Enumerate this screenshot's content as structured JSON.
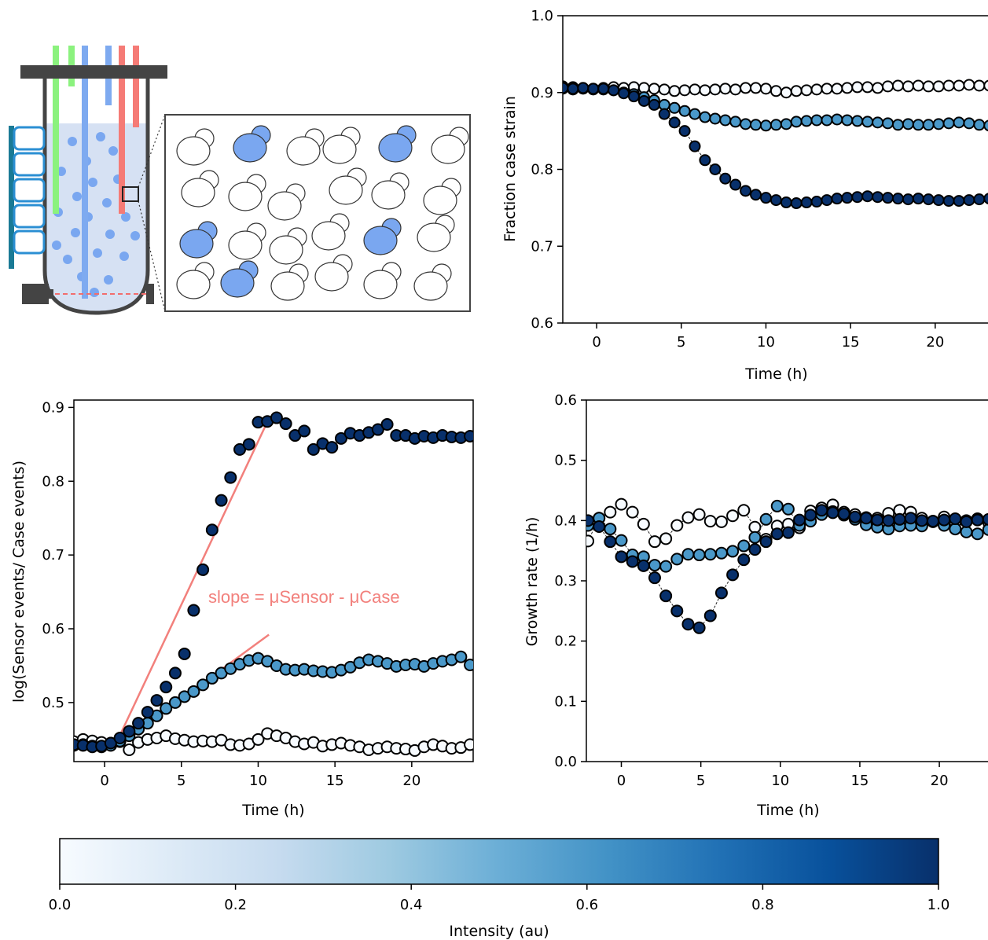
{
  "chart_data": [
    {
      "panel": "fraction",
      "type": "scatter",
      "ylabel": "Fraction case strain",
      "xlabel": "Time (h)",
      "xlim": [
        -2,
        24
      ],
      "ylim": [
        0.6,
        1.0
      ],
      "xticks": [
        "0",
        "5",
        "10",
        "15",
        "20"
      ],
      "yticks": [
        "0.6",
        "0.7",
        "0.8",
        "0.9",
        "1.0"
      ],
      "series": [
        {
          "intensity": 0.0,
          "x": [
            -2.0,
            -1.4,
            -0.8,
            -0.2,
            0.4,
            1.0,
            1.6,
            2.2,
            2.8,
            3.4,
            4.0,
            4.6,
            5.2,
            5.8,
            6.4,
            7.0,
            7.6,
            8.2,
            8.8,
            9.4,
            10.0,
            10.6,
            11.2,
            11.8,
            12.4,
            13.0,
            13.6,
            14.2,
            14.8,
            15.4,
            16.0,
            16.6,
            17.2,
            17.8,
            18.4,
            19.0,
            19.6,
            20.2,
            20.8,
            21.4,
            22.0,
            22.6,
            23.2,
            23.8
          ],
          "y": [
            0.908,
            0.907,
            0.906,
            0.905,
            0.906,
            0.907,
            0.906,
            0.907,
            0.906,
            0.905,
            0.904,
            0.902,
            0.903,
            0.904,
            0.903,
            0.904,
            0.905,
            0.904,
            0.906,
            0.906,
            0.905,
            0.902,
            0.9,
            0.902,
            0.903,
            0.904,
            0.905,
            0.905,
            0.906,
            0.907,
            0.907,
            0.906,
            0.908,
            0.909,
            0.908,
            0.909,
            0.908,
            0.908,
            0.909,
            0.909,
            0.91,
            0.909,
            0.909,
            0.907
          ]
        },
        {
          "intensity": 0.6,
          "x": [
            -2.0,
            -1.4,
            -0.8,
            -0.2,
            0.4,
            1.0,
            1.6,
            2.2,
            2.8,
            3.4,
            4.0,
            4.6,
            5.2,
            5.8,
            6.4,
            7.0,
            7.6,
            8.2,
            8.8,
            9.4,
            10.0,
            10.6,
            11.2,
            11.8,
            12.4,
            13.0,
            13.6,
            14.2,
            14.8,
            15.4,
            16.0,
            16.6,
            17.2,
            17.8,
            18.4,
            19.0,
            19.6,
            20.2,
            20.8,
            21.4,
            22.0,
            22.6,
            23.2,
            23.8
          ],
          "y": [
            0.905,
            0.904,
            0.905,
            0.904,
            0.904,
            0.903,
            0.9,
            0.898,
            0.894,
            0.89,
            0.884,
            0.88,
            0.876,
            0.872,
            0.868,
            0.866,
            0.864,
            0.862,
            0.859,
            0.858,
            0.857,
            0.858,
            0.859,
            0.862,
            0.863,
            0.864,
            0.864,
            0.865,
            0.864,
            0.863,
            0.862,
            0.861,
            0.86,
            0.858,
            0.859,
            0.858,
            0.858,
            0.859,
            0.86,
            0.861,
            0.86,
            0.858,
            0.857,
            0.86
          ]
        },
        {
          "intensity": 1.0,
          "x": [
            -2.0,
            -1.4,
            -0.8,
            -0.2,
            0.4,
            1.0,
            1.6,
            2.2,
            2.8,
            3.4,
            4.0,
            4.6,
            5.2,
            5.8,
            6.4,
            7.0,
            7.6,
            8.2,
            8.8,
            9.4,
            10.0,
            10.6,
            11.2,
            11.8,
            12.4,
            13.0,
            13.6,
            14.2,
            14.8,
            15.4,
            16.0,
            16.6,
            17.2,
            17.8,
            18.4,
            19.0,
            19.6,
            20.2,
            20.8,
            21.4,
            22.0,
            22.6,
            23.2,
            23.8
          ],
          "y": [
            0.906,
            0.905,
            0.906,
            0.905,
            0.905,
            0.903,
            0.899,
            0.895,
            0.889,
            0.884,
            0.872,
            0.861,
            0.85,
            0.83,
            0.812,
            0.8,
            0.788,
            0.78,
            0.772,
            0.767,
            0.763,
            0.76,
            0.757,
            0.756,
            0.757,
            0.758,
            0.76,
            0.762,
            0.763,
            0.764,
            0.765,
            0.764,
            0.763,
            0.762,
            0.761,
            0.762,
            0.761,
            0.76,
            0.759,
            0.759,
            0.76,
            0.761,
            0.762,
            0.761
          ]
        }
      ]
    },
    {
      "panel": "log-ratio",
      "type": "scatter",
      "ylabel": "log(Sensor events/ Case events)",
      "xlabel": "Time (h)",
      "xlim": [
        -2,
        24
      ],
      "ylim": [
        0.42,
        0.91
      ],
      "xticks": [
        "0",
        "5",
        "10",
        "15",
        "20"
      ],
      "yticks": [
        "0.5",
        "0.6",
        "0.7",
        "0.8",
        "0.9"
      ],
      "annotation": "slope = μSensor - μCase",
      "fit_lines": [
        {
          "x": [
            0.6,
            10.7
          ],
          "y": [
            0.438,
            0.885
          ]
        },
        {
          "x": [
            0.6,
            10.7
          ],
          "y": [
            0.438,
            0.592
          ]
        }
      ],
      "series": [
        {
          "intensity": 0.0,
          "x": [
            -2.0,
            -1.4,
            -0.8,
            -0.2,
            0.4,
            1.0,
            1.6,
            2.2,
            2.8,
            3.4,
            4.0,
            4.6,
            5.2,
            5.8,
            6.4,
            7.0,
            7.6,
            8.2,
            8.8,
            9.4,
            10.0,
            10.6,
            11.2,
            11.8,
            12.4,
            13.0,
            13.6,
            14.2,
            14.8,
            15.4,
            16.0,
            16.6,
            17.2,
            17.8,
            18.4,
            19.0,
            19.6,
            20.2,
            20.8,
            21.4,
            22.0,
            22.6,
            23.2,
            23.8
          ],
          "y": [
            0.447,
            0.45,
            0.448,
            0.446,
            0.445,
            0.447,
            0.436,
            0.446,
            0.45,
            0.452,
            0.455,
            0.451,
            0.449,
            0.447,
            0.448,
            0.447,
            0.449,
            0.443,
            0.442,
            0.444,
            0.45,
            0.458,
            0.455,
            0.452,
            0.447,
            0.444,
            0.446,
            0.441,
            0.443,
            0.445,
            0.442,
            0.44,
            0.436,
            0.438,
            0.44,
            0.438,
            0.437,
            0.435,
            0.44,
            0.443,
            0.441,
            0.438,
            0.439,
            0.443
          ]
        },
        {
          "intensity": 0.6,
          "x": [
            -2.0,
            -1.4,
            -0.8,
            -0.2,
            0.4,
            1.0,
            1.6,
            2.2,
            2.8,
            3.4,
            4.0,
            4.6,
            5.2,
            5.8,
            6.4,
            7.0,
            7.6,
            8.2,
            8.8,
            9.4,
            10.0,
            10.6,
            11.2,
            11.8,
            12.4,
            13.0,
            13.6,
            14.2,
            14.8,
            15.4,
            16.0,
            16.6,
            17.2,
            17.8,
            18.4,
            19.0,
            19.6,
            20.2,
            20.8,
            21.4,
            22.0,
            22.6,
            23.2,
            23.8
          ],
          "y": [
            0.442,
            0.443,
            0.441,
            0.44,
            0.442,
            0.448,
            0.455,
            0.464,
            0.472,
            0.482,
            0.492,
            0.5,
            0.508,
            0.515,
            0.524,
            0.533,
            0.54,
            0.546,
            0.552,
            0.557,
            0.56,
            0.556,
            0.55,
            0.545,
            0.544,
            0.545,
            0.543,
            0.542,
            0.541,
            0.544,
            0.548,
            0.554,
            0.558,
            0.556,
            0.553,
            0.549,
            0.551,
            0.552,
            0.549,
            0.553,
            0.556,
            0.558,
            0.562,
            0.551
          ]
        },
        {
          "intensity": 1.0,
          "x": [
            -2.0,
            -1.4,
            -0.8,
            -0.2,
            0.4,
            1.0,
            1.6,
            2.2,
            2.8,
            3.4,
            4.0,
            4.6,
            5.2,
            5.8,
            6.4,
            7.0,
            7.6,
            8.2,
            8.8,
            9.4,
            10.0,
            10.6,
            11.2,
            11.8,
            12.4,
            13.0,
            13.6,
            14.2,
            14.8,
            15.4,
            16.0,
            16.6,
            17.2,
            17.8,
            18.4,
            19.0,
            19.6,
            20.2,
            20.8,
            21.4,
            22.0,
            22.6,
            23.2,
            23.8
          ],
          "y": [
            0.443,
            0.442,
            0.44,
            0.441,
            0.445,
            0.452,
            0.461,
            0.472,
            0.487,
            0.503,
            0.521,
            0.54,
            0.566,
            0.625,
            0.68,
            0.734,
            0.774,
            0.805,
            0.843,
            0.85,
            0.88,
            0.881,
            0.886,
            0.878,
            0.862,
            0.868,
            0.843,
            0.851,
            0.846,
            0.858,
            0.865,
            0.862,
            0.866,
            0.87,
            0.877,
            0.862,
            0.862,
            0.858,
            0.861,
            0.859,
            0.862,
            0.86,
            0.859,
            0.861
          ]
        }
      ]
    },
    {
      "panel": "growth-rate",
      "type": "scatter",
      "ylabel": "Growth rate (1/h)",
      "xlabel": "Time (h)",
      "xlim": [
        -2.2,
        24
      ],
      "ylim": [
        0.0,
        0.6
      ],
      "xticks": [
        "0",
        "5",
        "10",
        "15",
        "20"
      ],
      "yticks": [
        "0.0",
        "0.1",
        "0.2",
        "0.3",
        "0.4",
        "0.5",
        "0.6"
      ],
      "series": [
        {
          "intensity": 0.0,
          "x": [
            -2.1,
            -1.4,
            -0.7,
            0.0,
            0.7,
            1.4,
            2.1,
            2.8,
            3.5,
            4.2,
            4.9,
            5.6,
            6.3,
            7.0,
            7.7,
            8.4,
            9.1,
            9.8,
            10.5,
            11.2,
            11.9,
            12.6,
            13.3,
            14.0,
            14.7,
            15.4,
            16.1,
            16.8,
            17.5,
            18.2,
            18.9,
            19.6,
            20.3,
            21.0,
            21.7,
            22.4,
            23.1,
            23.8
          ],
          "y": [
            0.366,
            0.404,
            0.414,
            0.427,
            0.414,
            0.394,
            0.365,
            0.37,
            0.392,
            0.405,
            0.41,
            0.399,
            0.398,
            0.408,
            0.417,
            0.389,
            0.369,
            0.391,
            0.394,
            0.388,
            0.416,
            0.421,
            0.426,
            0.414,
            0.41,
            0.405,
            0.404,
            0.412,
            0.417,
            0.414,
            0.404,
            0.399,
            0.406,
            0.397,
            0.4,
            0.403,
            0.397,
            0.407
          ]
        },
        {
          "intensity": 0.6,
          "x": [
            -2.1,
            -1.4,
            -0.7,
            0.0,
            0.7,
            1.4,
            2.1,
            2.8,
            3.5,
            4.2,
            4.9,
            5.6,
            6.3,
            7.0,
            7.7,
            8.4,
            9.1,
            9.8,
            10.5,
            11.2,
            11.9,
            12.6,
            13.3,
            14.0,
            14.7,
            15.4,
            16.1,
            16.8,
            17.5,
            18.2,
            18.9,
            19.6,
            20.3,
            21.0,
            21.7,
            22.4,
            23.1,
            23.8
          ],
          "y": [
            0.392,
            0.404,
            0.386,
            0.367,
            0.343,
            0.34,
            0.326,
            0.324,
            0.336,
            0.344,
            0.343,
            0.344,
            0.346,
            0.349,
            0.358,
            0.372,
            0.402,
            0.424,
            0.419,
            0.392,
            0.399,
            0.41,
            0.415,
            0.409,
            0.402,
            0.393,
            0.389,
            0.386,
            0.391,
            0.392,
            0.391,
            0.398,
            0.392,
            0.386,
            0.381,
            0.378,
            0.385,
            0.391
          ]
        },
        {
          "intensity": 1.0,
          "x": [
            -2.1,
            -1.4,
            -0.7,
            0.0,
            0.7,
            1.4,
            2.1,
            2.8,
            3.5,
            4.2,
            4.9,
            5.6,
            6.3,
            7.0,
            7.7,
            8.4,
            9.1,
            9.8,
            10.5,
            11.2,
            11.9,
            12.6,
            13.3,
            14.0,
            14.7,
            15.4,
            16.1,
            16.8,
            17.5,
            18.2,
            18.9,
            19.6,
            20.3,
            21.0,
            21.7,
            22.4,
            23.1,
            23.8
          ],
          "y": [
            0.4,
            0.39,
            0.365,
            0.34,
            0.332,
            0.325,
            0.305,
            0.275,
            0.25,
            0.228,
            0.222,
            0.242,
            0.28,
            0.31,
            0.335,
            0.352,
            0.365,
            0.378,
            0.38,
            0.401,
            0.409,
            0.417,
            0.413,
            0.411,
            0.406,
            0.404,
            0.401,
            0.4,
            0.402,
            0.404,
            0.4,
            0.399,
            0.401,
            0.403,
            0.398,
            0.401,
            0.402,
            0.399
          ]
        }
      ]
    },
    {
      "panel": "colorbar",
      "type": "colorbar",
      "label": "Intensity (au)",
      "range": [
        0.0,
        1.0
      ],
      "ticks": [
        "0.0",
        "0.2",
        "0.4",
        "0.6",
        "0.8",
        "1.0"
      ],
      "colormap": [
        "#f7fbff",
        "#deebf7",
        "#c6dbef",
        "#9ecae1",
        "#6baed6",
        "#4292c6",
        "#2171b5",
        "#08519c",
        "#08306b"
      ]
    }
  ],
  "schematic": {
    "palette": {
      "dark": "#444444",
      "green_tube": "#8bf27e",
      "blue_tube": "#7eaaf0",
      "red_tube": "#f57b76",
      "liquid": "#d6e1f3",
      "cell_fluor": "#7aa7f0",
      "led_teal": "#1a7a95",
      "led_blue": "#2b8fd3",
      "laser_dash": "#f26d6d"
    }
  }
}
